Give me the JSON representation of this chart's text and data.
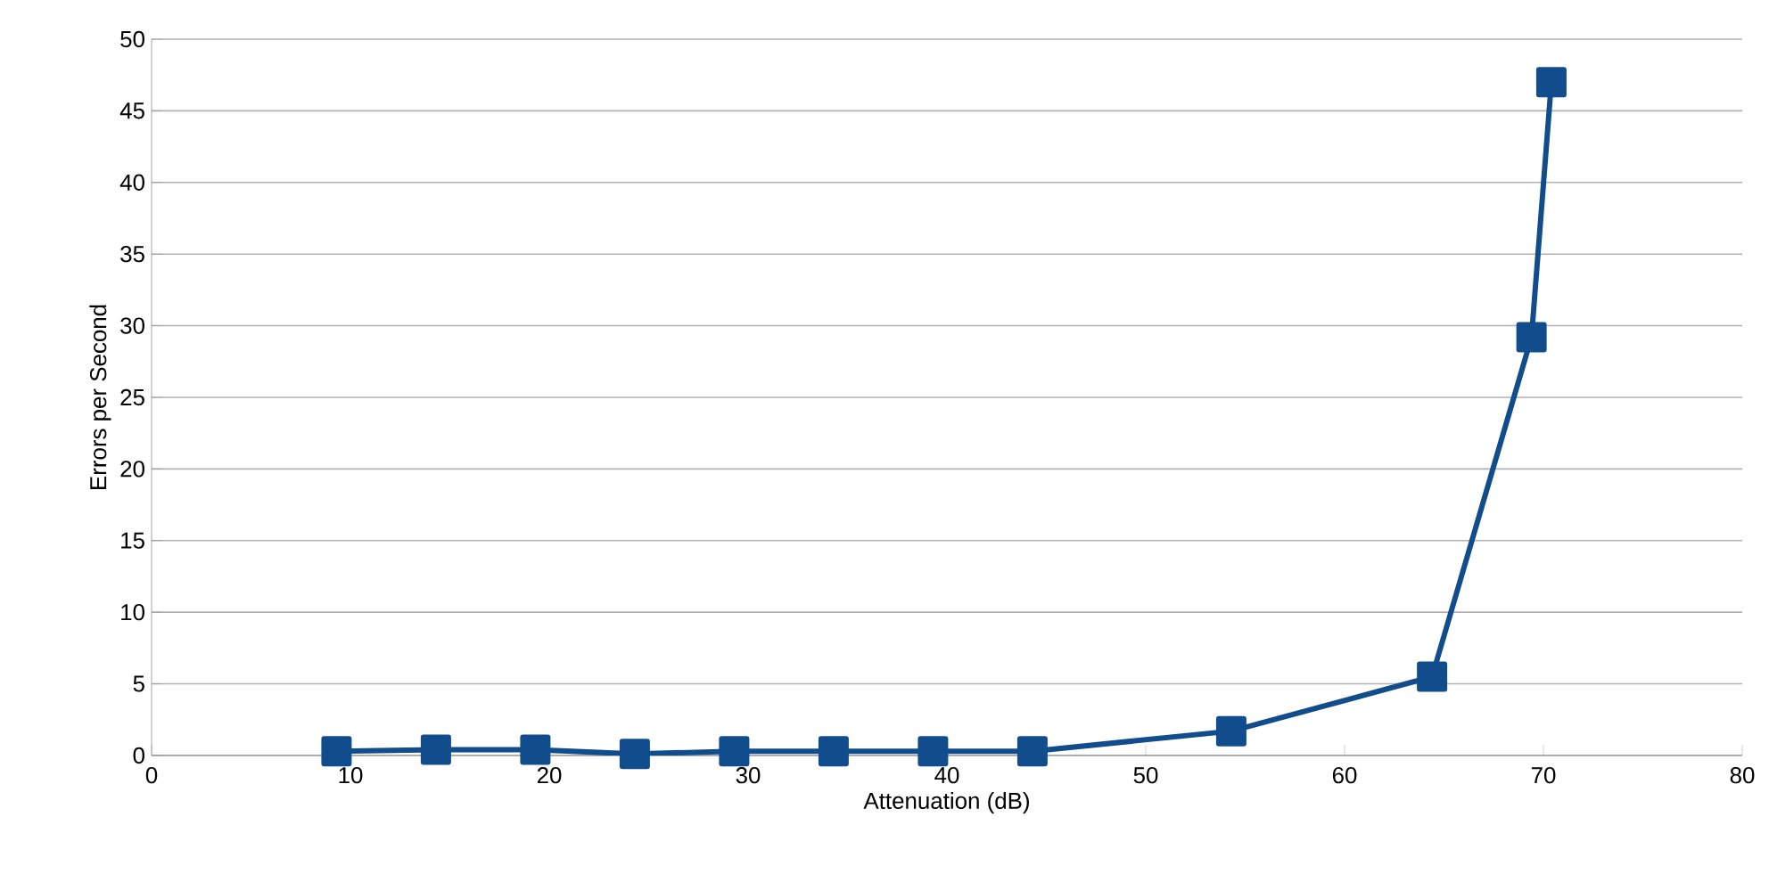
{
  "chart_data": {
    "type": "line",
    "xlabel": "Attenuation (dB)",
    "ylabel": "Errors per Second",
    "x": [
      9.3,
      14.3,
      19.3,
      24.3,
      29.3,
      34.3,
      39.3,
      44.3,
      54.3,
      64.4,
      69.4,
      70.4
    ],
    "series": [
      {
        "color": "#114d8c",
        "values": [
          0.3,
          0.4,
          0.4,
          0.1,
          0.3,
          0.3,
          0.3,
          0.3,
          1.7,
          5.5,
          29.2,
          47
        ]
      }
    ],
    "xlim": [
      0,
      80
    ],
    "xticks": [
      0,
      10,
      20,
      30,
      40,
      50,
      60,
      70,
      80
    ],
    "ylim": [
      0,
      50
    ],
    "yticks": [
      0,
      5,
      10,
      15,
      20,
      25,
      30,
      35,
      40,
      45,
      50
    ],
    "grid": "y",
    "marker": "square",
    "line_style": "solid"
  }
}
